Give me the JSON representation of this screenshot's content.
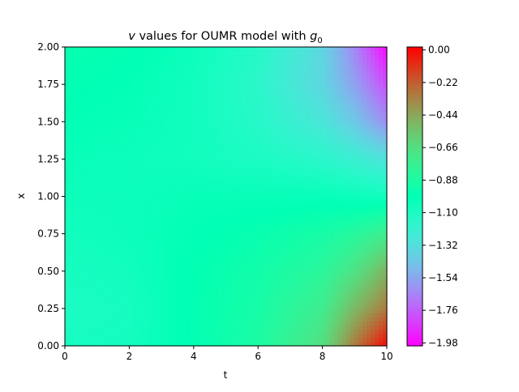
{
  "chart_data": {
    "type": "heatmap",
    "title": {
      "italic_var": "v",
      "middle": " values for OUMR model with ",
      "g_var": "g",
      "g_sub": "0"
    },
    "xlabel": "t",
    "ylabel": "x",
    "xlim": [
      0,
      10
    ],
    "ylim": [
      0,
      2
    ],
    "x_ticks": [
      "0",
      "2",
      "4",
      "6",
      "8",
      "10"
    ],
    "y_ticks": [
      "0.00",
      "0.25",
      "0.50",
      "0.75",
      "1.00",
      "1.25",
      "1.50",
      "1.75",
      "2.00"
    ],
    "colormap": "rainbow",
    "color_range": [
      -2.0,
      0.02
    ],
    "colorbar_ticks": [
      "0.00",
      "−0.22",
      "−0.44",
      "−0.66",
      "−0.88",
      "−1.10",
      "−1.32",
      "−1.54",
      "−1.76",
      "−1.98"
    ],
    "colorbar_tick_values": [
      0.0,
      -0.22,
      -0.44,
      -0.66,
      -0.88,
      -1.1,
      -1.32,
      -1.54,
      -1.76,
      -1.98
    ],
    "field_samples": {
      "t": [
        0,
        2,
        4,
        6,
        8,
        9,
        10
      ],
      "x": [
        0.0,
        0.25,
        0.5,
        0.75,
        1.0,
        1.25,
        1.5,
        1.75,
        2.0
      ],
      "v": [
        [
          -1.08,
          -1.07,
          -0.98,
          -0.88,
          -0.66,
          -0.3,
          0.0
        ],
        [
          -1.1,
          -1.08,
          -0.98,
          -0.9,
          -0.74,
          -0.5,
          -0.3
        ],
        [
          -1.08,
          -1.06,
          -0.98,
          -0.92,
          -0.82,
          -0.68,
          -0.48
        ],
        [
          -1.06,
          -1.04,
          -1.0,
          -0.96,
          -0.9,
          -0.84,
          -0.74
        ],
        [
          -1.04,
          -1.04,
          -1.02,
          -1.02,
          -1.02,
          -1.04,
          -1.06
        ],
        [
          -1.02,
          -1.04,
          -1.06,
          -1.1,
          -1.16,
          -1.22,
          -1.3
        ],
        [
          -1.0,
          -1.02,
          -1.06,
          -1.14,
          -1.28,
          -1.42,
          -1.62
        ],
        [
          -0.98,
          -1.0,
          -1.06,
          -1.16,
          -1.36,
          -1.56,
          -1.8
        ],
        [
          -0.96,
          -0.98,
          -1.04,
          -1.14,
          -1.36,
          -1.64,
          -1.98
        ]
      ]
    }
  }
}
